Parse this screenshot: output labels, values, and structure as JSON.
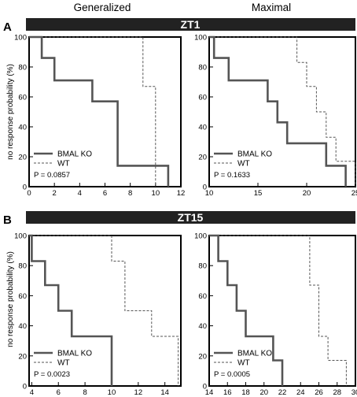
{
  "column_titles": [
    "Generalized",
    "Maximal"
  ],
  "rows": [
    {
      "letter": "A",
      "band": "ZT1"
    },
    {
      "letter": "B",
      "band": "ZT15"
    }
  ],
  "y_axis_label": "no response probability (%)",
  "colors": {
    "band": "#222222",
    "ko": "#555555",
    "wt": "#555555",
    "axis": "#000000"
  },
  "chart_data": [
    {
      "type": "line",
      "row": "ZT1",
      "column": "Generalized",
      "xlim": [
        0,
        12
      ],
      "ylim": [
        0,
        100
      ],
      "xticks": [
        0,
        2,
        4,
        6,
        8,
        10,
        12
      ],
      "yticks": [
        0,
        20,
        40,
        60,
        80,
        100
      ],
      "series": [
        {
          "name": "BMAL KO",
          "style": "solid-thick",
          "x": [
            0,
            1,
            1,
            2,
            2,
            5,
            5,
            7,
            7,
            11,
            11
          ],
          "y": [
            100,
            100,
            86,
            86,
            71,
            71,
            57,
            57,
            14,
            14,
            0
          ]
        },
        {
          "name": "WT",
          "style": "dashed",
          "x": [
            0,
            9,
            9,
            10,
            10
          ],
          "y": [
            100,
            100,
            67,
            67,
            0
          ]
        }
      ],
      "legend": [
        "BMAL KO",
        "WT"
      ],
      "pvalue": "P = 0.0857"
    },
    {
      "type": "line",
      "row": "ZT1",
      "column": "Maximal",
      "xlim": [
        10,
        25
      ],
      "ylim": [
        0,
        100
      ],
      "xticks": [
        10,
        15,
        20,
        25
      ],
      "yticks": [
        0,
        20,
        40,
        60,
        80,
        100
      ],
      "series": [
        {
          "name": "BMAL KO",
          "style": "solid-thick",
          "x": [
            10,
            10.5,
            10.5,
            12,
            12,
            16,
            16,
            17,
            17,
            18,
            18,
            22,
            22,
            24,
            24
          ],
          "y": [
            100,
            100,
            86,
            86,
            71,
            71,
            57,
            57,
            43,
            43,
            29,
            29,
            14,
            14,
            0
          ]
        },
        {
          "name": "WT",
          "style": "dashed",
          "x": [
            10,
            19,
            19,
            20,
            20,
            21,
            21,
            22,
            22,
            23,
            23,
            24,
            24,
            25,
            25
          ],
          "y": [
            100,
            100,
            83,
            83,
            67,
            67,
            50,
            50,
            33,
            33,
            17,
            17,
            17,
            17,
            0
          ]
        }
      ],
      "legend": [
        "BMAL KO",
        "WT"
      ],
      "pvalue": "P = 0.1633"
    },
    {
      "type": "line",
      "row": "ZT15",
      "column": "Generalized",
      "xlim": [
        3.8,
        15.2
      ],
      "ylim": [
        0,
        100
      ],
      "xticks": [
        4,
        6,
        8,
        10,
        12,
        14
      ],
      "yticks": [
        0,
        20,
        40,
        60,
        80,
        100
      ],
      "series": [
        {
          "name": "BMAL KO",
          "style": "solid-thick",
          "x": [
            3.8,
            4,
            4,
            5,
            5,
            6,
            6,
            7,
            7,
            10,
            10
          ],
          "y": [
            100,
            100,
            83,
            83,
            67,
            67,
            50,
            50,
            33,
            33,
            0
          ]
        },
        {
          "name": "WT",
          "style": "dashed",
          "x": [
            3.8,
            10,
            10,
            11,
            11,
            13,
            13,
            15,
            15
          ],
          "y": [
            100,
            100,
            83,
            83,
            50,
            50,
            33,
            33,
            0
          ]
        }
      ],
      "legend": [
        "BMAL KO",
        "WT"
      ],
      "pvalue": "P = 0.0023"
    },
    {
      "type": "line",
      "row": "ZT15",
      "column": "Maximal",
      "xlim": [
        14,
        30
      ],
      "ylim": [
        0,
        100
      ],
      "xticks": [
        14,
        16,
        18,
        20,
        22,
        24,
        26,
        28,
        30
      ],
      "yticks": [
        0,
        20,
        40,
        60,
        80,
        100
      ],
      "series": [
        {
          "name": "BMAL KO",
          "style": "solid-thick",
          "x": [
            14,
            15,
            15,
            16,
            16,
            17,
            17,
            18,
            18,
            21,
            21,
            22,
            22
          ],
          "y": [
            100,
            100,
            83,
            83,
            67,
            67,
            50,
            50,
            33,
            33,
            17,
            17,
            0
          ]
        },
        {
          "name": "WT",
          "style": "dashed",
          "x": [
            14,
            25,
            25,
            26,
            26,
            27,
            27,
            29,
            29
          ],
          "y": [
            100,
            100,
            67,
            67,
            33,
            33,
            17,
            17,
            0
          ]
        }
      ],
      "legend": [
        "BMAL KO",
        "WT"
      ],
      "pvalue": "P = 0.0005"
    }
  ]
}
